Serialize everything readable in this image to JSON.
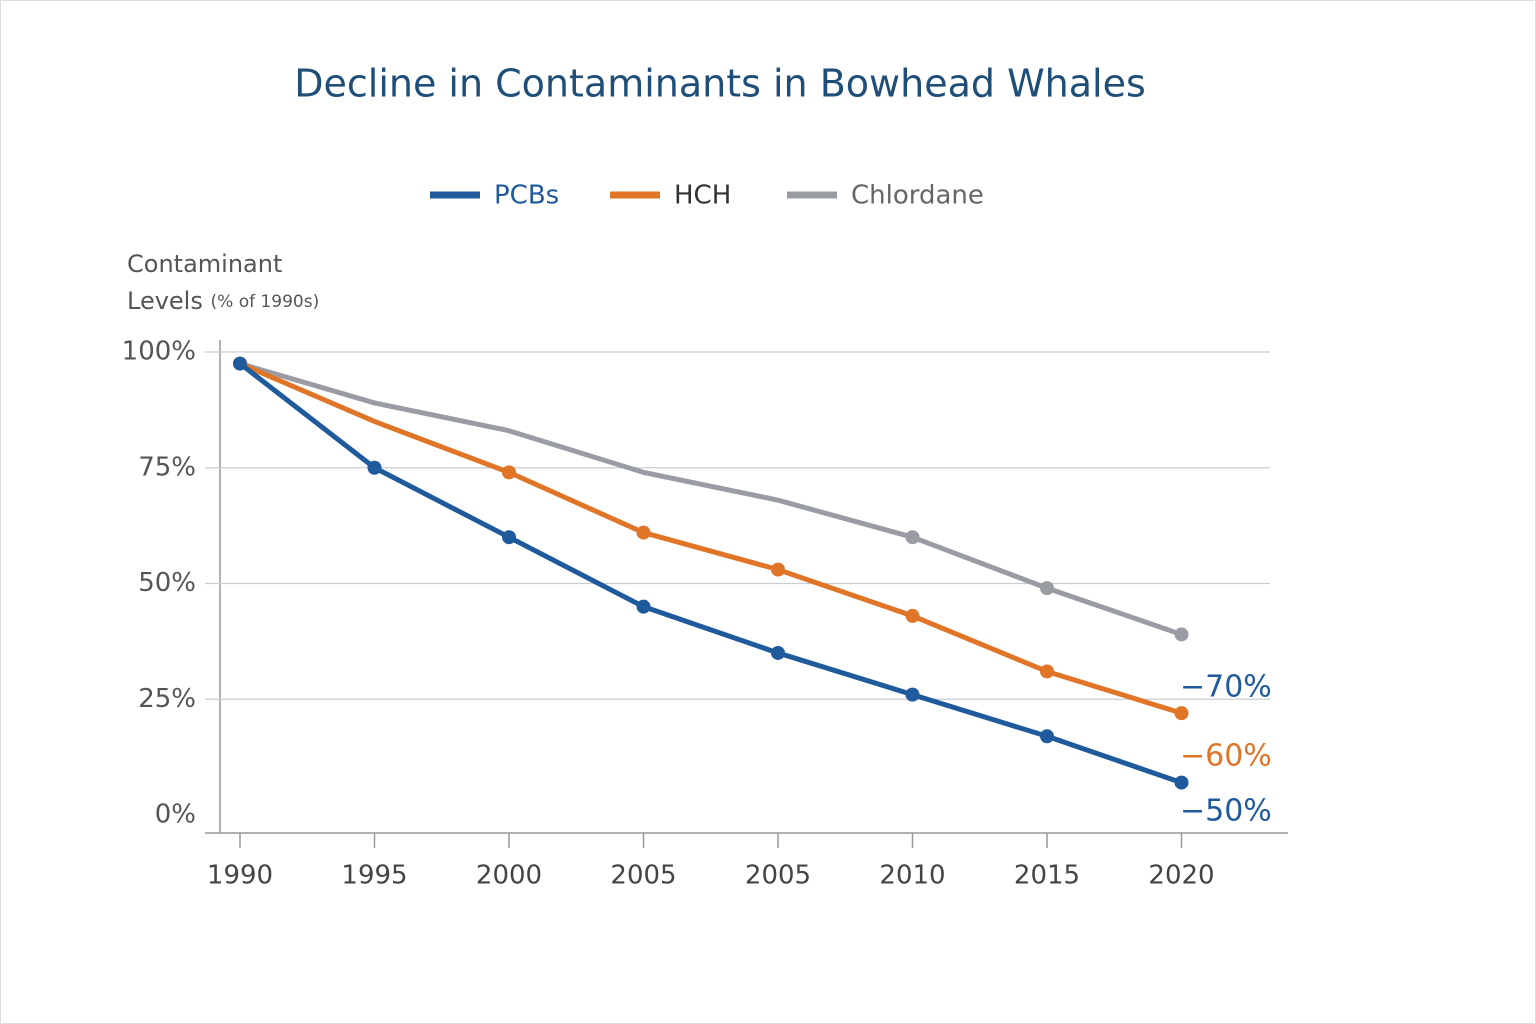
{
  "chart_data": {
    "type": "line",
    "title": "Decline in Contaminants in Bowhead Whales",
    "ylabel_lines": [
      "Contaminant",
      "Levels"
    ],
    "ylabel_note": "(% of 1990s)",
    "categories": [
      "1990",
      "1995",
      "2000",
      "2005",
      "2005",
      "2010",
      "2015",
      "2020"
    ],
    "series": [
      {
        "name": "PCBs",
        "color": "#1f5a9c",
        "values": [
          97.5,
          75,
          60,
          45,
          35,
          26,
          17,
          7
        ]
      },
      {
        "name": "HCH",
        "color": "#e07528",
        "values": [
          97.5,
          85,
          74,
          61,
          53,
          43,
          31,
          22
        ]
      },
      {
        "name": "Chlordane",
        "color": "#9a9ca3",
        "values": [
          97.5,
          89,
          83,
          74,
          68,
          60,
          49,
          39
        ]
      }
    ],
    "ylim": [
      0,
      100
    ],
    "yticks": [
      {
        "value": 0,
        "label": "0%"
      },
      {
        "value": 25,
        "label": "25%"
      },
      {
        "value": 50,
        "label": "50%"
      },
      {
        "value": 75,
        "label": "75%"
      },
      {
        "value": 100,
        "label": "100%"
      }
    ],
    "grid": true,
    "annotations": [
      {
        "text": "−70%",
        "color": "#1f5a9c"
      },
      {
        "text": "−60%",
        "color": "#e07528"
      },
      {
        "text": "−50%",
        "color": "#1f5a9c"
      }
    ]
  }
}
